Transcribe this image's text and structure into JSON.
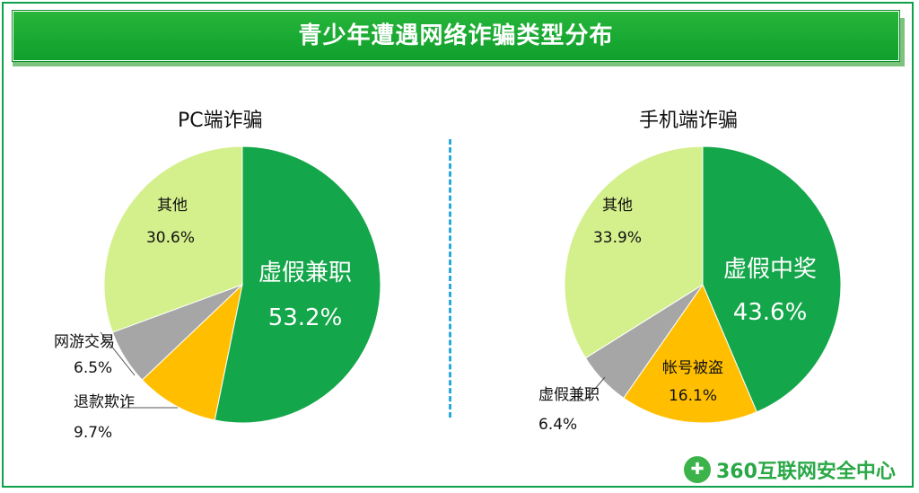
{
  "banner": {
    "title": "青少年遭遇网络诈骗类型分布"
  },
  "logo": {
    "text": "360互联网安全中心"
  },
  "colors": {
    "green": "#14a64a",
    "orange": "#ffbf00",
    "gray": "#a6a6a6",
    "lightgreen": "#d4f08c",
    "frame": "#0da14a"
  },
  "chart_data": [
    {
      "type": "pie",
      "title": "PC端诈骗",
      "slices": [
        {
          "label": "虚假兼职",
          "value": 53.2,
          "display": "53.2%",
          "color": "#14a64a"
        },
        {
          "label": "退款欺诈",
          "value": 9.7,
          "display": "9.7%",
          "color": "#ffbf00"
        },
        {
          "label": "网游交易",
          "value": 6.5,
          "display": "6.5%",
          "color": "#a6a6a6"
        },
        {
          "label": "其他",
          "value": 30.6,
          "display": "30.6%",
          "color": "#d4f08c"
        }
      ]
    },
    {
      "type": "pie",
      "title": "手机端诈骗",
      "slices": [
        {
          "label": "虚假中奖",
          "value": 43.6,
          "display": "43.6%",
          "color": "#14a64a"
        },
        {
          "label": "帐号被盗",
          "value": 16.1,
          "display": "16.1%",
          "color": "#ffbf00"
        },
        {
          "label": "虚假兼职",
          "value": 6.4,
          "display": "6.4%",
          "color": "#a6a6a6"
        },
        {
          "label": "其他",
          "value": 33.9,
          "display": "33.9%",
          "color": "#d4f08c"
        }
      ]
    }
  ]
}
